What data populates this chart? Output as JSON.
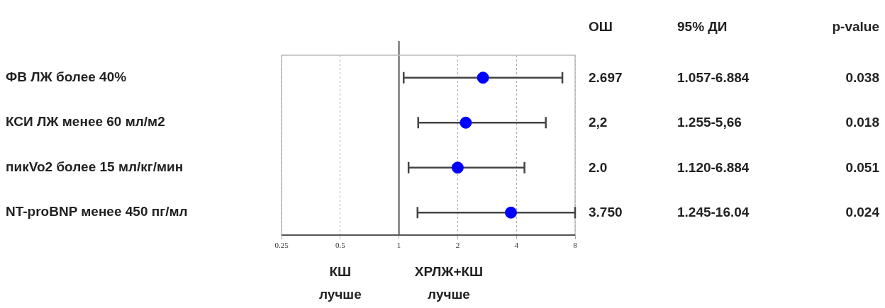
{
  "chart_data": {
    "type": "scatter",
    "orientation": "horizontal",
    "categories": [
      "ФВ ЛЖ более 40%",
      "КСИ ЛЖ менее 60 мл/м2",
      "пикVo2 более 15 мл/кг/мин",
      "NT-proBNP менее 450 пг/мл"
    ],
    "values": [
      2.697,
      2.2,
      2.0,
      3.75
    ],
    "errors": [
      [
        1.057,
        6.884
      ],
      [
        1.255,
        5.66
      ],
      [
        1.12,
        4.4
      ],
      [
        1.245,
        8
      ]
    ],
    "color": "#0000ff",
    "marker": "circle",
    "log": "x",
    "xlim": [
      0.25,
      8
    ],
    "xticks": [
      0.25,
      0.5,
      1,
      2,
      4,
      8
    ],
    "grid": "x",
    "ref_lines": [
      {
        "axis": "x",
        "value": 1,
        "color": "#555555"
      }
    ],
    "annotations": [
      "ОШ",
      "95% ДИ",
      "p-value",
      "2.697",
      "1.057-6.884",
      "0.038",
      "2,2",
      "1.255-5,66",
      "0.018",
      "2.0",
      "1.120-6.884",
      "0.051",
      "3.750",
      "1.245-16.04",
      "0.024",
      "КШ лучше",
      "ХРЛЖ+КШ лучше"
    ]
  }
}
